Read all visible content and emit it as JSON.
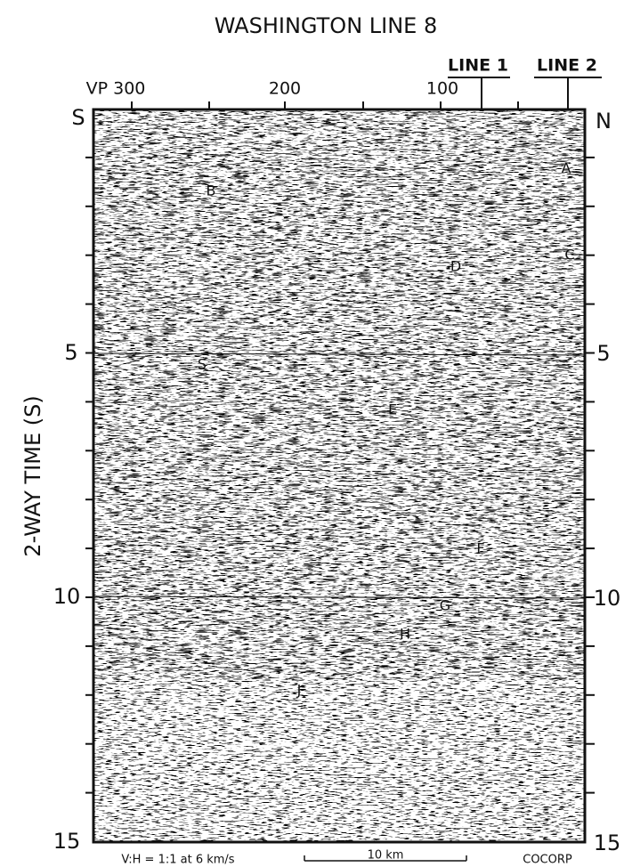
{
  "header": {
    "title": "WASHINGTON LINE 8"
  },
  "axis_top": {
    "labels": [
      "VP 300",
      "200",
      "100"
    ],
    "lines": [
      "LINE 1",
      "LINE 2"
    ]
  },
  "ends": {
    "left": "S",
    "right": "N"
  },
  "y_axis": {
    "label": "2-WAY TIME (S)",
    "left_ticks": [
      "5",
      "10",
      "15"
    ],
    "right_ticks": [
      "5",
      "10",
      "15"
    ]
  },
  "annotations": [
    "A",
    "B",
    "C",
    "D",
    "S",
    "E",
    "F",
    "G",
    "H",
    "J"
  ],
  "footer": {
    "ratio": "V:H = 1:1 at 6 km/s",
    "scale": "10 km",
    "credit": "COCORP"
  }
}
